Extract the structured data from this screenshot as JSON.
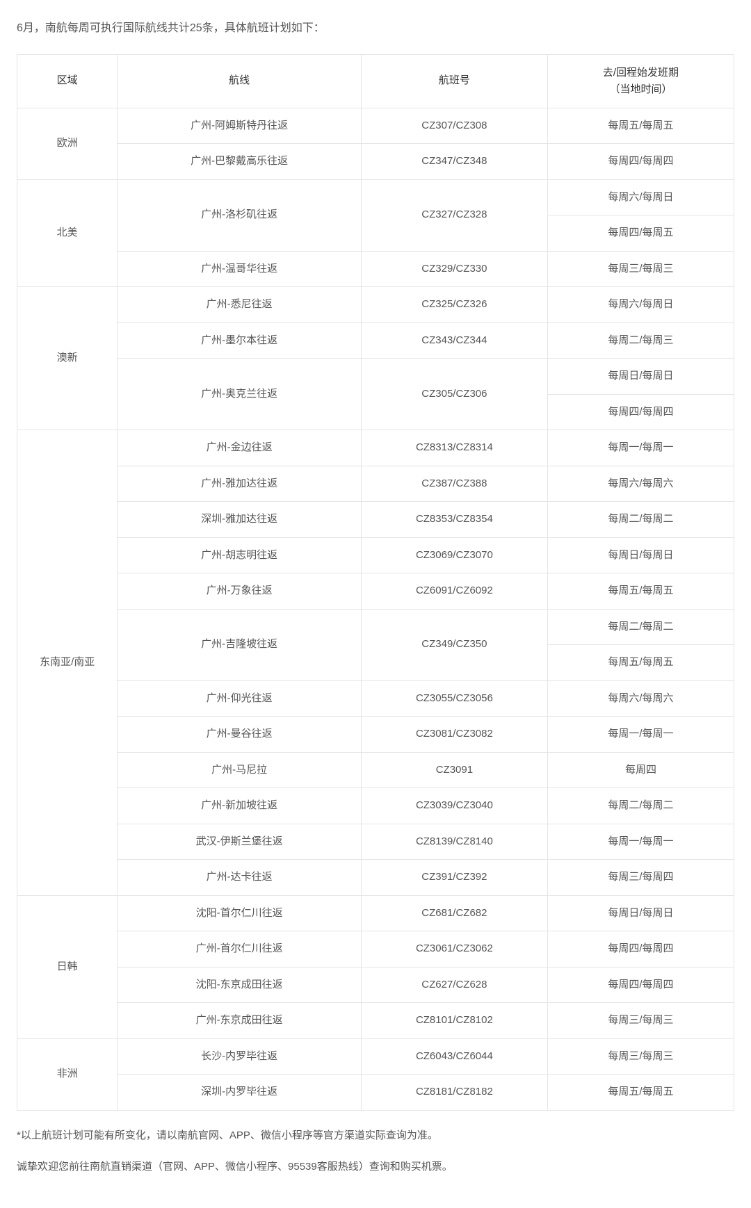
{
  "intro": "6月，南航每周可执行国际航线共计25条，具体航班计划如下：",
  "columns": {
    "region": "区域",
    "route": "航线",
    "flight": "航班号",
    "date_line1": "去/回程始发班期",
    "date_line2": "（当地时间）"
  },
  "footnote1": "*以上航班计划可能有所变化，请以南航官网、APP、微信小程序等官方渠道实际查询为准。",
  "footnote2": "诚挚欢迎您前往南航直销渠道（官网、APP、微信小程序、95539客服热线）查询和购买机票。",
  "regions": {
    "europe": "欧洲",
    "namerica": "北美",
    "anz": "澳新",
    "sea": "东南亚/南亚",
    "jpkr": "日韩",
    "africa": "非洲"
  },
  "routes": {
    "gz_ams": "广州-阿姆斯特丹往返",
    "gz_cdg": "广州-巴黎戴高乐往返",
    "gz_lax": "广州-洛杉矶往返",
    "gz_yvr": "广州-温哥华往返",
    "gz_syd": "广州-悉尼往返",
    "gz_mel": "广州-墨尔本往返",
    "gz_akl": "广州-奥克兰往返",
    "gz_pnh": "广州-金边往返",
    "gz_cgk": "广州-雅加达往返",
    "sz_cgk": "深圳-雅加达往返",
    "gz_sgn": "广州-胡志明往返",
    "gz_vte": "广州-万象往返",
    "gz_kul": "广州-吉隆坡往返",
    "gz_rgn": "广州-仰光往返",
    "gz_bkk": "广州-曼谷往返",
    "gz_mnl": "广州-马尼拉",
    "gz_sin": "广州-新加坡往返",
    "wh_isb": "武汉-伊斯兰堡往返",
    "gz_dac": "广州-达卡往返",
    "sy_icn": "沈阳-首尔仁川往返",
    "gz_icn": "广州-首尔仁川往返",
    "sy_nrt": "沈阳-东京成田往返",
    "gz_nrt": "广州-东京成田往返",
    "cs_nbo": "长沙-内罗毕往返",
    "sz_nbo": "深圳-内罗毕往返"
  },
  "flights": {
    "gz_ams": "CZ307/CZ308",
    "gz_cdg": "CZ347/CZ348",
    "gz_lax": "CZ327/CZ328",
    "gz_yvr": "CZ329/CZ330",
    "gz_syd": "CZ325/CZ326",
    "gz_mel": "CZ343/CZ344",
    "gz_akl": "CZ305/CZ306",
    "gz_pnh": "CZ8313/CZ8314",
    "gz_cgk": "CZ387/CZ388",
    "sz_cgk": "CZ8353/CZ8354",
    "gz_sgn": "CZ3069/CZ3070",
    "gz_vte": "CZ6091/CZ6092",
    "gz_kul": "CZ349/CZ350",
    "gz_rgn": "CZ3055/CZ3056",
    "gz_bkk": "CZ3081/CZ3082",
    "gz_mnl": "CZ3091",
    "gz_sin": "CZ3039/CZ3040",
    "wh_isb": "CZ8139/CZ8140",
    "gz_dac": "CZ391/CZ392",
    "sy_icn": "CZ681/CZ682",
    "gz_icn": "CZ3061/CZ3062",
    "sy_nrt": "CZ627/CZ628",
    "gz_nrt": "CZ8101/CZ8102",
    "cs_nbo": "CZ6043/CZ6044",
    "sz_nbo": "CZ8181/CZ8182"
  },
  "dates": {
    "gz_ams": "每周五/每周五",
    "gz_cdg": "每周四/每周四",
    "gz_lax_1": "每周六/每周日",
    "gz_lax_2": "每周四/每周五",
    "gz_yvr": "每周三/每周三",
    "gz_syd": "每周六/每周日",
    "gz_mel": "每周二/每周三",
    "gz_akl_1": "每周日/每周日",
    "gz_akl_2": "每周四/每周四",
    "gz_pnh": "每周一/每周一",
    "gz_cgk": "每周六/每周六",
    "sz_cgk": "每周二/每周二",
    "gz_sgn": "每周日/每周日",
    "gz_vte": "每周五/每周五",
    "gz_kul_1": "每周二/每周二",
    "gz_kul_2": "每周五/每周五",
    "gz_rgn": "每周六/每周六",
    "gz_bkk": "每周一/每周一",
    "gz_mnl": "每周四",
    "gz_sin": "每周二/每周二",
    "wh_isb": "每周一/每周一",
    "gz_dac": "每周三/每周四",
    "sy_icn": "每周日/每周日",
    "gz_icn": "每周四/每周四",
    "sy_nrt": "每周四/每周四",
    "gz_nrt": "每周三/每周三",
    "cs_nbo": "每周三/每周三",
    "sz_nbo": "每周五/每周五"
  },
  "style": {
    "border_color": "#e5e5e5",
    "text_color": "#555555",
    "background": "#ffffff",
    "font_size_body": 15,
    "font_size_intro": 16
  }
}
